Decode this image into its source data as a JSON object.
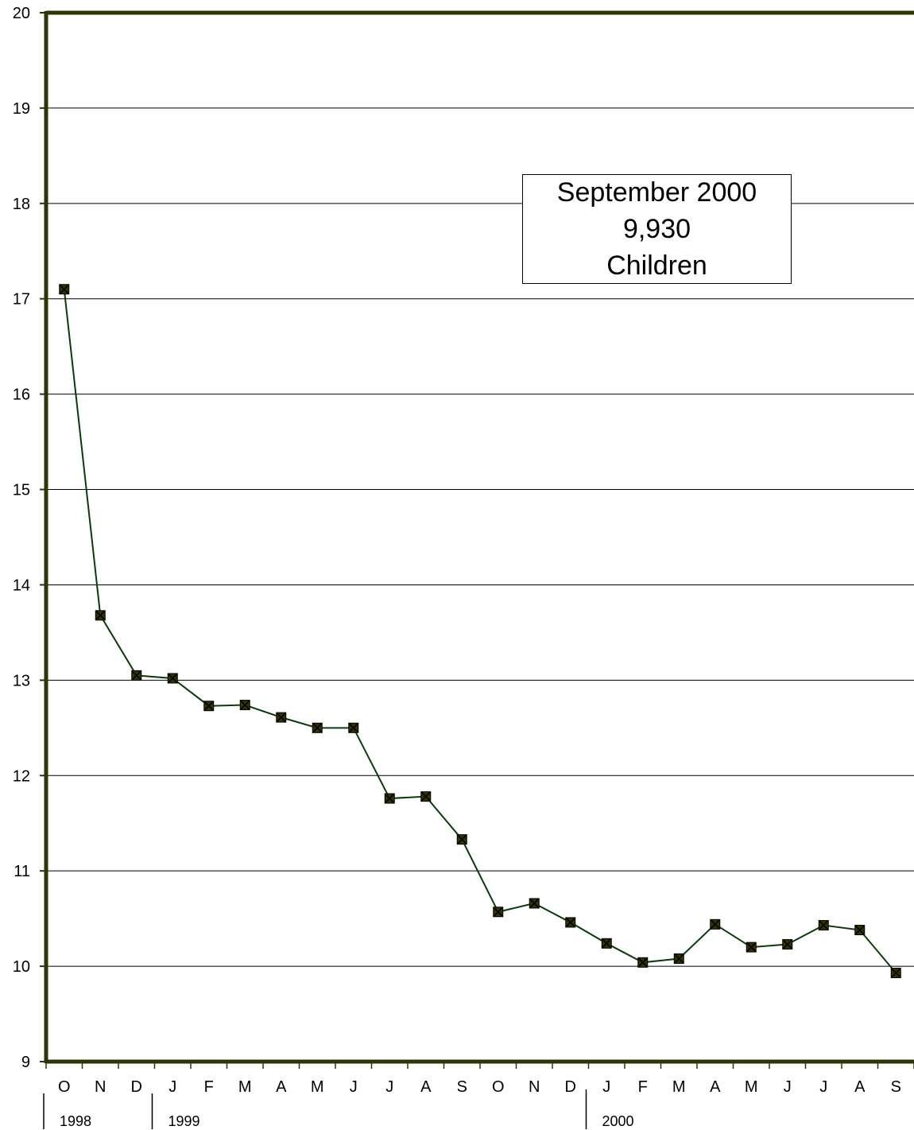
{
  "chart_data": {
    "type": "line",
    "categories": [
      "O",
      "N",
      "D",
      "J",
      "F",
      "M",
      "A",
      "M",
      "J",
      "J",
      "A",
      "S",
      "O",
      "N",
      "D",
      "J",
      "F",
      "M",
      "A",
      "M",
      "J",
      "J",
      "A",
      "S"
    ],
    "series": [
      {
        "values": [
          17.1,
          13.68,
          13.05,
          13.02,
          12.73,
          12.74,
          12.61,
          12.5,
          12.5,
          11.76,
          11.78,
          11.33,
          10.57,
          10.66,
          10.46,
          10.24,
          10.04,
          10.08,
          10.44,
          10.2,
          10.23,
          10.43,
          10.38,
          9.93
        ]
      }
    ],
    "years": [
      {
        "label": "1998",
        "start_index": 0
      },
      {
        "label": "1999",
        "start_index": 3
      },
      {
        "label": "2000",
        "start_index": 15
      }
    ],
    "ylim": [
      9,
      20
    ],
    "yticks": [
      "9",
      "10",
      "11",
      "12",
      "13",
      "14",
      "15",
      "16",
      "17",
      "18",
      "19",
      "20"
    ],
    "grid": true,
    "annotation": [
      "September 2000",
      "9,930",
      "Children"
    ],
    "colors": {
      "axis": "#2e3408",
      "line": "#0b3b0b",
      "marker_fill": "#333300",
      "grid": "#000000"
    }
  }
}
